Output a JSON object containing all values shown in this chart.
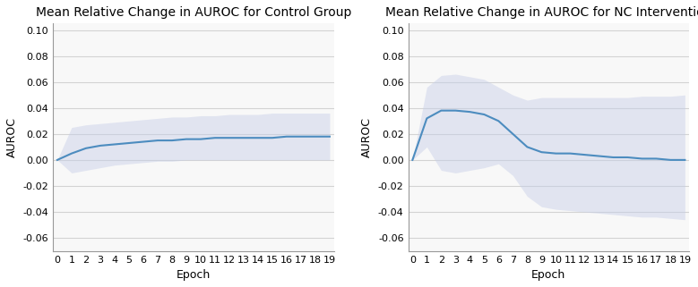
{
  "control_mean": [
    0.0,
    0.005,
    0.009,
    0.011,
    0.012,
    0.013,
    0.014,
    0.015,
    0.015,
    0.016,
    0.016,
    0.017,
    0.017,
    0.017,
    0.017,
    0.017,
    0.018,
    0.018,
    0.018,
    0.018
  ],
  "control_upper": [
    0.0,
    0.025,
    0.027,
    0.028,
    0.029,
    0.03,
    0.031,
    0.032,
    0.033,
    0.033,
    0.034,
    0.034,
    0.035,
    0.035,
    0.035,
    0.036,
    0.036,
    0.036,
    0.036,
    0.036
  ],
  "control_lower": [
    0.0,
    -0.01,
    -0.008,
    -0.006,
    -0.004,
    -0.003,
    -0.002,
    -0.001,
    -0.001,
    0.0,
    0.0,
    0.0,
    0.0,
    0.0,
    0.0,
    0.0,
    0.0,
    0.0,
    0.0,
    0.0
  ],
  "intervention_mean": [
    0.0,
    0.032,
    0.038,
    0.038,
    0.037,
    0.035,
    0.03,
    0.02,
    0.01,
    0.006,
    0.005,
    0.005,
    0.004,
    0.003,
    0.002,
    0.002,
    0.001,
    0.001,
    0.0,
    0.0
  ],
  "intervention_upper": [
    0.0,
    0.056,
    0.065,
    0.066,
    0.064,
    0.062,
    0.056,
    0.05,
    0.046,
    0.048,
    0.048,
    0.048,
    0.048,
    0.048,
    0.048,
    0.048,
    0.049,
    0.049,
    0.049,
    0.05
  ],
  "intervention_lower": [
    0.0,
    0.01,
    -0.008,
    -0.01,
    -0.008,
    -0.006,
    -0.003,
    -0.012,
    -0.028,
    -0.036,
    -0.038,
    -0.039,
    -0.04,
    -0.041,
    -0.042,
    -0.043,
    -0.044,
    -0.044,
    -0.045,
    -0.046
  ],
  "epochs": [
    0,
    1,
    2,
    3,
    4,
    5,
    6,
    7,
    8,
    9,
    10,
    11,
    12,
    13,
    14,
    15,
    16,
    17,
    18,
    19
  ],
  "ylim": [
    -0.07,
    0.105
  ],
  "yticks": [
    -0.06,
    -0.04,
    -0.02,
    0.0,
    0.02,
    0.04,
    0.06,
    0.08,
    0.1
  ],
  "line_color": "#4c8cbf",
  "fill_color": "#c5cde8",
  "fill_alpha": 0.45,
  "title_control": "Mean Relative Change in AUROC for Control Group",
  "title_intervention": "Mean Relative Change in AUROC for NC Intervention",
  "xlabel": "Epoch",
  "ylabel": "AUROC",
  "grid_color": "#b0b0b0",
  "grid_alpha": 0.5,
  "title_fontsize": 10,
  "label_fontsize": 9,
  "tick_fontsize": 8,
  "bg_color": "#f8f8f8"
}
